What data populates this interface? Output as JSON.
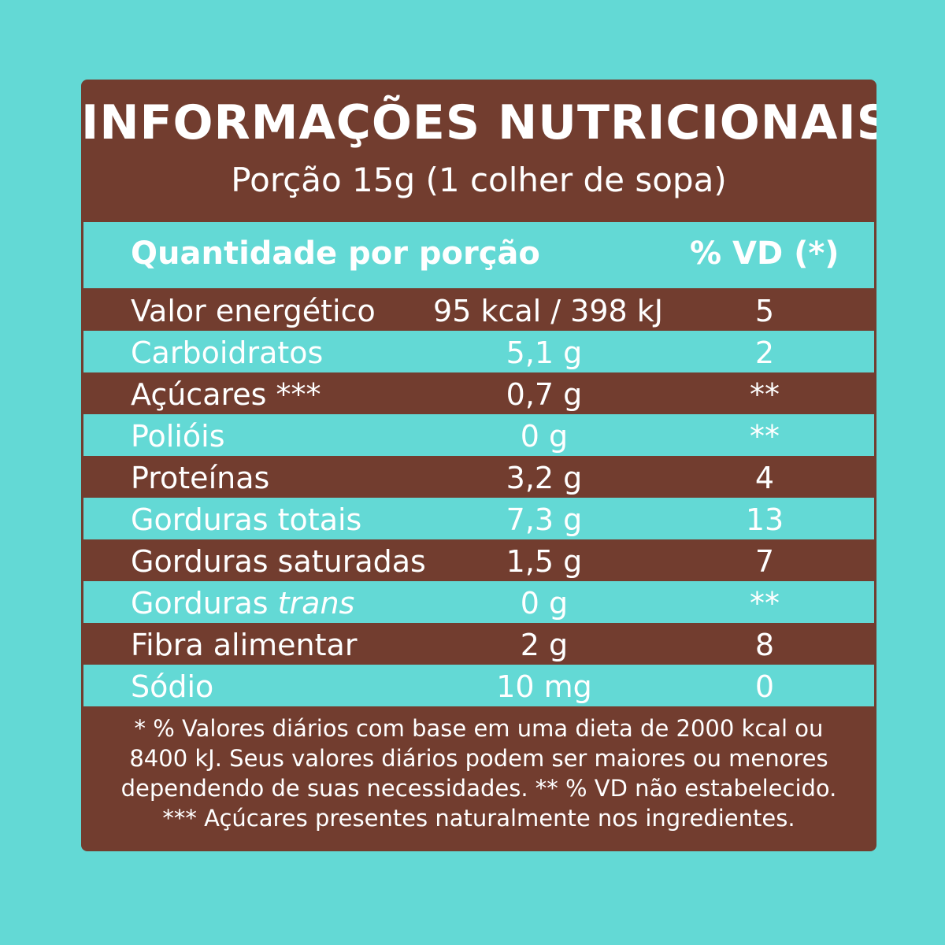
{
  "title": "INFORMAÇÕES NUTRICIONAIS",
  "subtitle": "Porção 15g (1 colher de sopa)",
  "header": {
    "quantity": "Quantidade por porção",
    "vd": "% VD (*)"
  },
  "rows": [
    {
      "name": "Valor energético",
      "name_italic": "",
      "qty": "95 kcal / 398 kJ",
      "vd": "5"
    },
    {
      "name": "Carboidratos",
      "name_italic": "",
      "qty": "5,1 g",
      "vd": "2"
    },
    {
      "name": "Açúcares ***",
      "name_italic": "",
      "qty": "0,7 g",
      "vd": "**"
    },
    {
      "name": "Polióis",
      "name_italic": "",
      "qty": "0 g",
      "vd": "**"
    },
    {
      "name": "Proteínas",
      "name_italic": "",
      "qty": "3,2 g",
      "vd": "4"
    },
    {
      "name": "Gorduras totais",
      "name_italic": "",
      "qty": "7,3 g",
      "vd": "13"
    },
    {
      "name": "Gorduras saturadas",
      "name_italic": "",
      "qty": "1,5 g",
      "vd": "7"
    },
    {
      "name": "Gorduras ",
      "name_italic": "trans",
      "qty": "0 g",
      "vd": "**"
    },
    {
      "name": "Fibra alimentar",
      "name_italic": "",
      "qty": "2 g",
      "vd": "8"
    },
    {
      "name": "Sódio",
      "name_italic": "",
      "qty": "10 mg",
      "vd": "0"
    }
  ],
  "footnote": [
    "* % Valores diários com base em uma dieta de 2000 kcal ou",
    "8400 kJ. Seus valores diários podem ser maiores ou menores",
    "dependendo de suas necessidades. ** % VD não estabelecido.",
    "*** Açúcares presentes naturalmente nos ingredientes."
  ],
  "colors": {
    "brown": "#723d2f",
    "teal": "#63d9d5",
    "text": "#ffffff"
  }
}
